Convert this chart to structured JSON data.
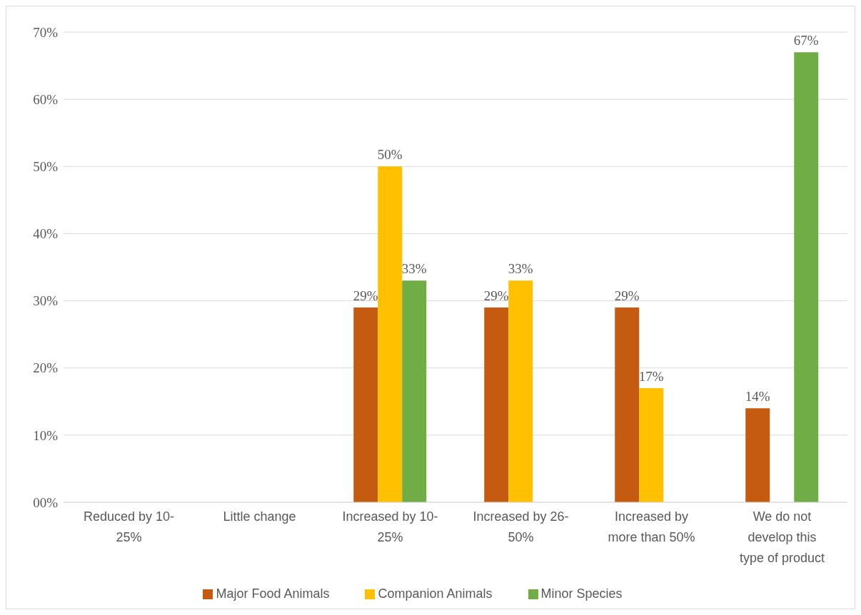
{
  "chart_data": {
    "type": "bar",
    "categories": [
      "Reduced by 10-25%",
      "Little change",
      "Increased by 10-25%",
      "Increased by 26-50%",
      "Increased by more than 50%",
      "We do not develop this type of product"
    ],
    "series": [
      {
        "name": "Major Food Animals",
        "color": "#c55a11",
        "values": [
          null,
          null,
          29,
          29,
          29,
          14
        ],
        "value_labels": [
          null,
          null,
          "29%",
          "29%",
          "29%",
          "14%"
        ]
      },
      {
        "name": "Companion Animals",
        "color": "#ffc000",
        "values": [
          null,
          null,
          50,
          33,
          17,
          null
        ],
        "value_labels": [
          null,
          null,
          "50%",
          "33%",
          "17%",
          null
        ]
      },
      {
        "name": "Minor Species",
        "color": "#70ad47",
        "values": [
          null,
          null,
          33,
          null,
          null,
          67
        ],
        "value_labels": [
          null,
          null,
          "33%",
          null,
          null,
          "67%"
        ]
      }
    ],
    "ylim": [
      0,
      70
    ],
    "yticks": [
      {
        "value": 0,
        "label": "00%"
      },
      {
        "value": 10,
        "label": "10%"
      },
      {
        "value": 20,
        "label": "20%"
      },
      {
        "value": 30,
        "label": "30%"
      },
      {
        "value": 40,
        "label": "40%"
      },
      {
        "value": 50,
        "label": "50%"
      },
      {
        "value": 60,
        "label": "60%"
      },
      {
        "value": 70,
        "label": "70%"
      }
    ],
    "grid": "y",
    "legend": "bottom"
  }
}
